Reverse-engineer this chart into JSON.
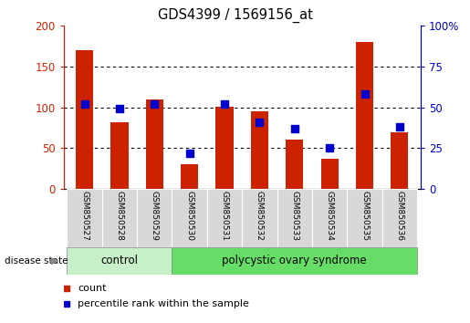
{
  "title": "GDS4399 / 1569156_at",
  "samples": [
    "GSM850527",
    "GSM850528",
    "GSM850529",
    "GSM850530",
    "GSM850531",
    "GSM850532",
    "GSM850533",
    "GSM850534",
    "GSM850535",
    "GSM850536"
  ],
  "counts": [
    170,
    82,
    110,
    30,
    101,
    95,
    60,
    37,
    180,
    70
  ],
  "percentile_ranks": [
    52,
    49,
    52,
    22,
    52,
    41,
    37,
    25,
    58,
    38
  ],
  "left_ylim": [
    0,
    200
  ],
  "right_ylim": [
    0,
    100
  ],
  "left_yticks": [
    0,
    50,
    100,
    150,
    200
  ],
  "right_yticks": [
    0,
    25,
    50,
    75,
    100
  ],
  "left_yticklabels": [
    "0",
    "50",
    "100",
    "150",
    "200"
  ],
  "right_yticklabels": [
    "0",
    "25",
    "50",
    "75",
    "100%"
  ],
  "bar_color": "#cc2200",
  "dot_color": "#0000cc",
  "grid_color": "#000000",
  "n_control": 3,
  "n_disease": 7,
  "control_label": "control",
  "disease_label": "polycystic ovary syndrome",
  "disease_state_label": "disease state",
  "legend_count_label": "count",
  "legend_percentile_label": "percentile rank within the sample",
  "control_color": "#c8f0c8",
  "disease_color": "#66dd66",
  "tick_label_area_color": "#d8d8d8"
}
